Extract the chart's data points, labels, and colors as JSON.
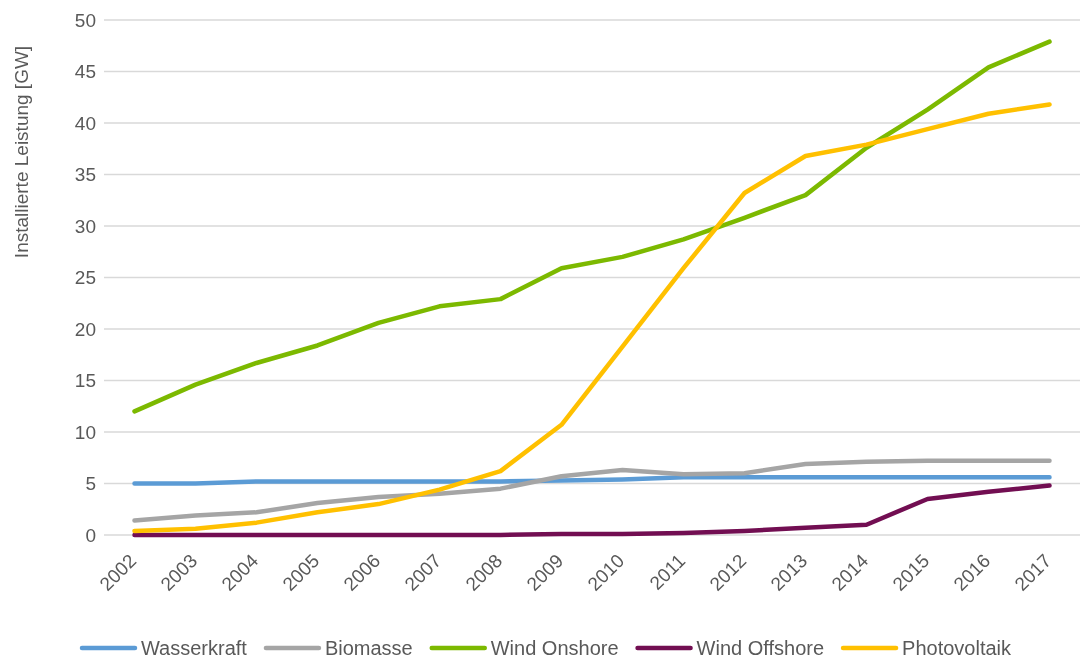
{
  "chart_data": {
    "type": "line",
    "ylabel": "Installierte Leistung [GW]",
    "categories": [
      "2002",
      "2003",
      "2004",
      "2005",
      "2006",
      "2007",
      "2008",
      "2009",
      "2010",
      "2011",
      "2012",
      "2013",
      "2014",
      "2015",
      "2016",
      "2017"
    ],
    "ylim": [
      0,
      50
    ],
    "yticks": [
      0,
      5,
      10,
      15,
      20,
      25,
      30,
      35,
      40,
      45,
      50
    ],
    "grid": "y",
    "legend": "bottom",
    "marker": "none",
    "line_style": "solid",
    "series": [
      {
        "name": "Wasserkraft",
        "color": "#5b9bd5",
        "values": [
          5.0,
          5.0,
          5.2,
          5.2,
          5.2,
          5.2,
          5.2,
          5.3,
          5.4,
          5.6,
          5.6,
          5.6,
          5.6,
          5.6,
          5.6,
          5.6
        ]
      },
      {
        "name": "Biomasse",
        "color": "#a5a5a5",
        "values": [
          1.4,
          1.9,
          2.2,
          3.1,
          3.7,
          4.0,
          4.5,
          5.7,
          6.3,
          5.9,
          6.0,
          6.9,
          7.1,
          7.2,
          7.2,
          7.2
        ]
      },
      {
        "name": "Wind Onshore",
        "color": "#7cb900",
        "values": [
          12.0,
          14.6,
          16.7,
          18.4,
          20.6,
          22.2,
          22.9,
          25.9,
          27.0,
          28.7,
          30.8,
          33.0,
          37.6,
          41.3,
          45.4,
          47.9
        ]
      },
      {
        "name": "Wind Offshore",
        "color": "#720e52",
        "values": [
          0,
          0,
          0,
          0,
          0,
          0,
          0,
          0.1,
          0.1,
          0.2,
          0.4,
          0.7,
          1.0,
          3.5,
          4.2,
          4.8
        ]
      },
      {
        "name": "Photovoltaik",
        "color": "#ffc000",
        "values": [
          0.4,
          0.6,
          1.2,
          2.2,
          3.0,
          4.4,
          6.2,
          10.7,
          18.3,
          25.9,
          33.2,
          36.8,
          37.9,
          39.4,
          40.9,
          41.8
        ]
      }
    ]
  }
}
